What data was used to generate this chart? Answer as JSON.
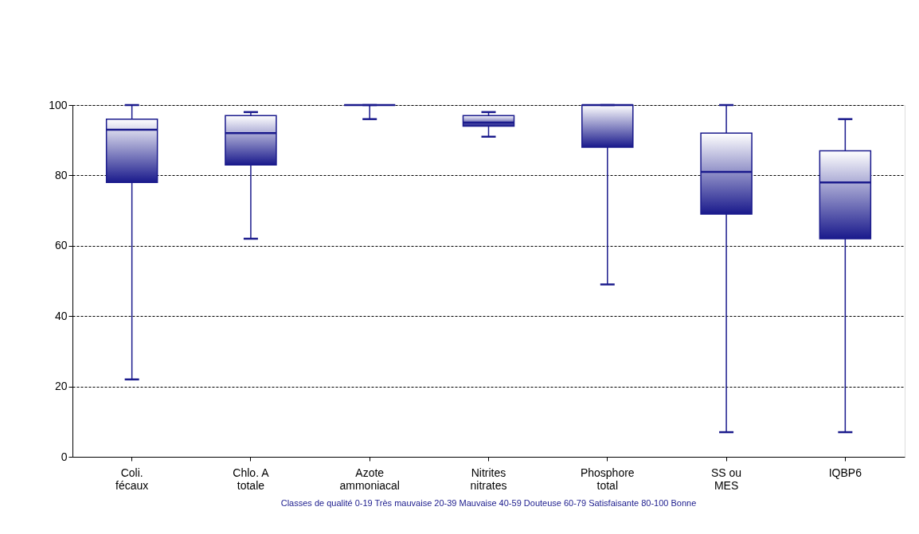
{
  "chart_data": {
    "type": "box",
    "categories": [
      "Coli.\nfécaux",
      "Chlo. A\ntotale",
      "Azote\nammoniacal",
      "Nitrites\nnitrates",
      "Phosphore\ntotal",
      "SS ou\nMES",
      "IQBP6"
    ],
    "boxes": [
      {
        "low": 22,
        "q1": 78,
        "median": 93,
        "q3": 96,
        "high": 100
      },
      {
        "low": 62,
        "q1": 83,
        "median": 92,
        "q3": 97,
        "high": 98
      },
      {
        "low": 96,
        "q1": 100,
        "median": 100,
        "q3": 100,
        "high": 100
      },
      {
        "low": 91,
        "q1": 94,
        "median": 95,
        "q3": 97,
        "high": 98
      },
      {
        "low": 49,
        "q1": 88,
        "median": 100,
        "q3": 100,
        "high": 100
      },
      {
        "low": 7,
        "q1": 69,
        "median": 81,
        "q3": 92,
        "high": 100
      },
      {
        "low": 7,
        "q1": 62,
        "median": 78,
        "q3": 87,
        "high": 96
      }
    ],
    "color": "#1a1a8c",
    "ylim": [
      0,
      100
    ],
    "yticks": [
      0,
      20,
      40,
      60,
      80,
      100
    ],
    "grid": "y",
    "annotations": [
      "Classes de qualité    0-19 Très mauvaise    20-39 Mauvaise    40-59 Douteuse    60-79 Satisfaisante    80-100 Bonne"
    ]
  }
}
